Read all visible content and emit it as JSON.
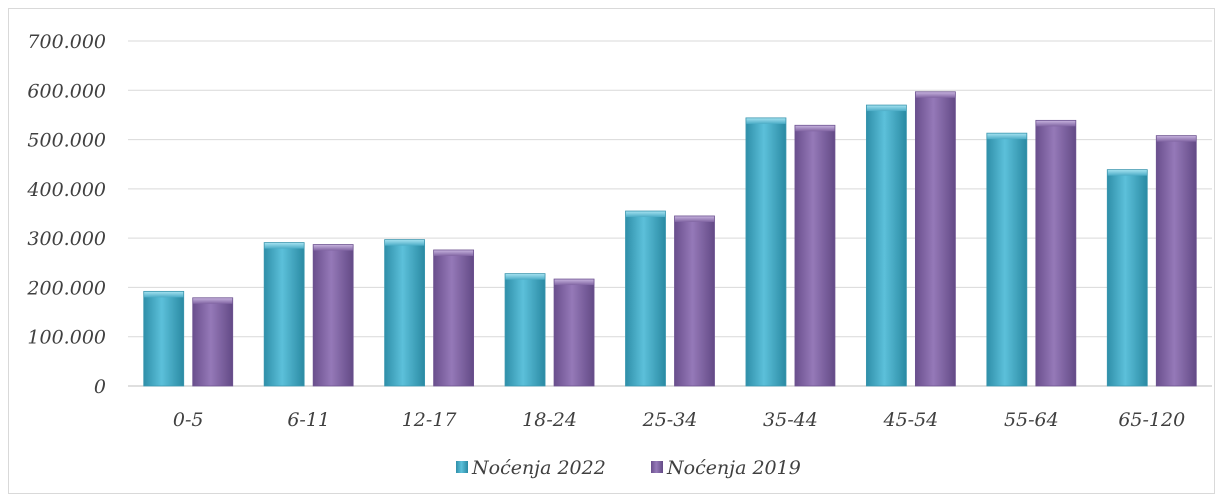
{
  "chart_data": {
    "type": "bar",
    "categories": [
      "0-5",
      "6-11",
      "12-17",
      "18-24",
      "25-34",
      "35-44",
      "45-54",
      "55-64",
      "65-120"
    ],
    "series": [
      {
        "name": "Noćenja 2022",
        "color": "#4bacc6",
        "values": [
          192000,
          291000,
          297000,
          228000,
          355000,
          544000,
          570000,
          513000,
          439000
        ]
      },
      {
        "name": "Noćenja 2019",
        "color": "#8064a2",
        "values": [
          179000,
          287000,
          276000,
          217000,
          345000,
          529000,
          597000,
          539000,
          508000
        ]
      }
    ],
    "ylim": [
      0,
      700000
    ],
    "yticks": [
      0,
      100000,
      200000,
      300000,
      400000,
      500000,
      600000,
      700000
    ],
    "ytick_labels": [
      "0",
      "100.000",
      "200.000",
      "300.000",
      "400.000",
      "500.000",
      "600.000",
      "700.000"
    ],
    "grid": true,
    "legend": "bottom-center"
  }
}
